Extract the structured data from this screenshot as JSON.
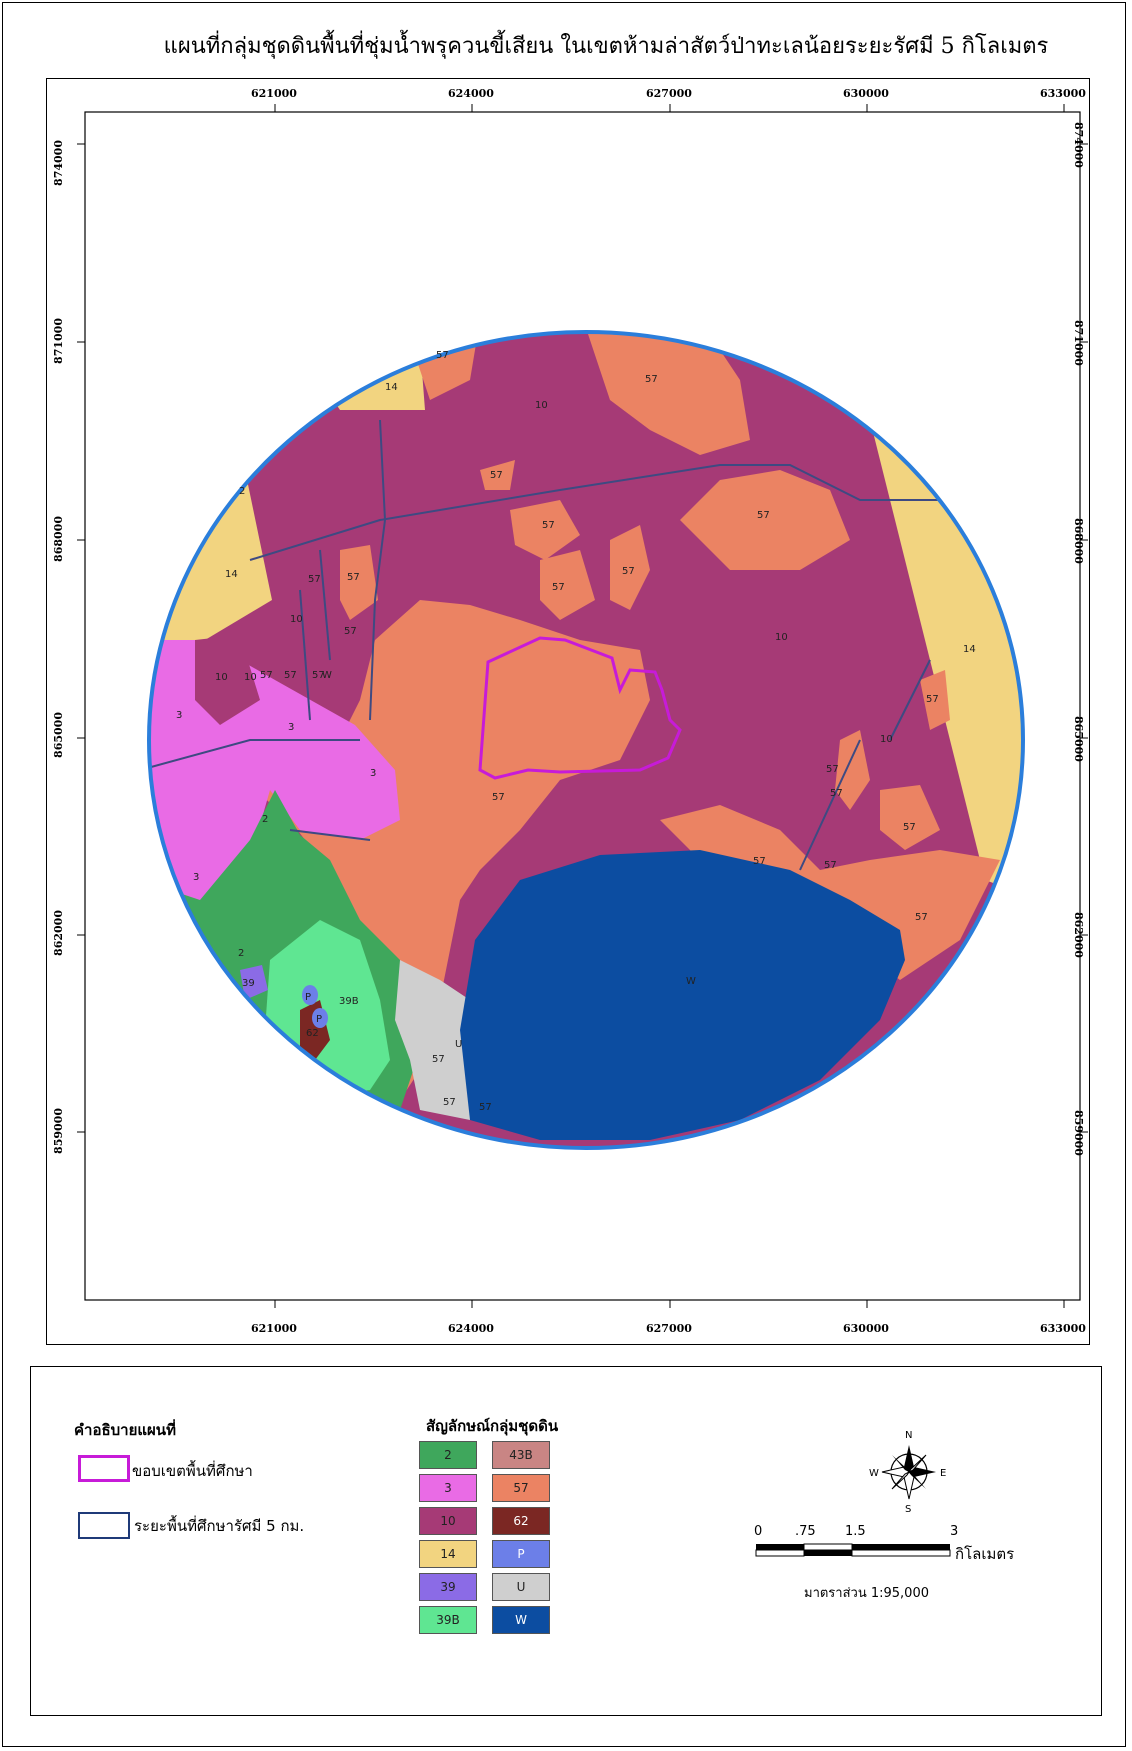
{
  "title": "แผนที่กลุ่มชุดดินพื้นที่ชุ่มน้ำพรุควนขี้เสียน ในเขตห้ามล่าสัตว์ป่าทะเลน้อยระยะรัศมี 5 กิโลเมตร",
  "x_ticks": [
    "621000",
    "624000",
    "627000",
    "630000",
    "633000"
  ],
  "y_ticks": [
    "874000",
    "871000",
    "868000",
    "865000",
    "862000",
    "859000"
  ],
  "map_labels": {
    "l10": "10",
    "l14": "14",
    "l57": "57",
    "l3": "3",
    "l2": "2",
    "l39": "39",
    "l39B": "39B",
    "lP": "P",
    "l62": "62",
    "lU": "U",
    "lW": "W"
  },
  "legend": {
    "map_desc_title": "คำอธิบายแผนที่",
    "study_boundary": "ขอบเขตพื้นที่ศึกษา",
    "study_radius": "ระยะพื้นที่ศึกษารัศมี  5 กม.",
    "soil_title": "สัญลักษณ์กลุ่มชุดดิน",
    "soil_groups": [
      {
        "code": "2",
        "color": "#3FA75C"
      },
      {
        "code": "43B",
        "color": "#C98584"
      },
      {
        "code": "3",
        "color": "#E96BE5"
      },
      {
        "code": "57",
        "color": "#EB8363"
      },
      {
        "code": "10",
        "color": "#A63A76"
      },
      {
        "code": "62",
        "color": "#7B2723"
      },
      {
        "code": "14",
        "color": "#F2D480"
      },
      {
        "code": "P",
        "color": "#6C7FE8"
      },
      {
        "code": "39",
        "color": "#8B6BE6"
      },
      {
        "code": "U",
        "color": "#CFCFCF"
      },
      {
        "code": "39B",
        "color": "#5FE692"
      },
      {
        "code": "W",
        "color": "#0C4DA1"
      }
    ]
  },
  "north": {
    "N": "N",
    "S": "S",
    "E": "E",
    "W": "W"
  },
  "scale": {
    "t0": "0",
    "t1": ".75",
    "t2": "1.5",
    "t3": "3",
    "unit": "กิโลเมตร",
    "ratio": "มาตราส่วน 1:95,000"
  },
  "colors": {
    "boundary": "#C71BD8",
    "radius": "#1F3A78",
    "circle": "#2B7EDB"
  }
}
